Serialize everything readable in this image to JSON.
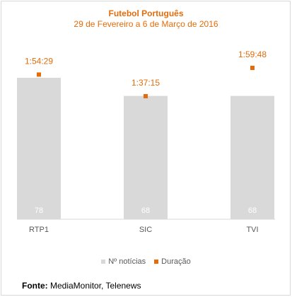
{
  "chart_data": {
    "type": "bar",
    "title": "Futebol Português",
    "subtitle": "29 de Fevereiro a 6 de Março de 2016",
    "categories": [
      "RTP1",
      "SIC",
      "TVI"
    ],
    "series": [
      {
        "name": "Nº notícias",
        "type": "bar",
        "color": "#d9d9d9",
        "label_color": "#ffffff",
        "values": [
          78,
          68,
          68
        ],
        "labels": [
          "78",
          "68",
          "68"
        ]
      },
      {
        "name": "Duração",
        "type": "marker",
        "color": "#e46c0a",
        "values_seconds": [
          6869,
          5835,
          7188
        ],
        "labels": [
          "1:54:29",
          "1:37:15",
          "1:59:48"
        ]
      }
    ],
    "legend_position": "bottom",
    "grid": false
  },
  "source": {
    "label": "Fonte:",
    "text": "MediaMonitor, Telenews"
  }
}
